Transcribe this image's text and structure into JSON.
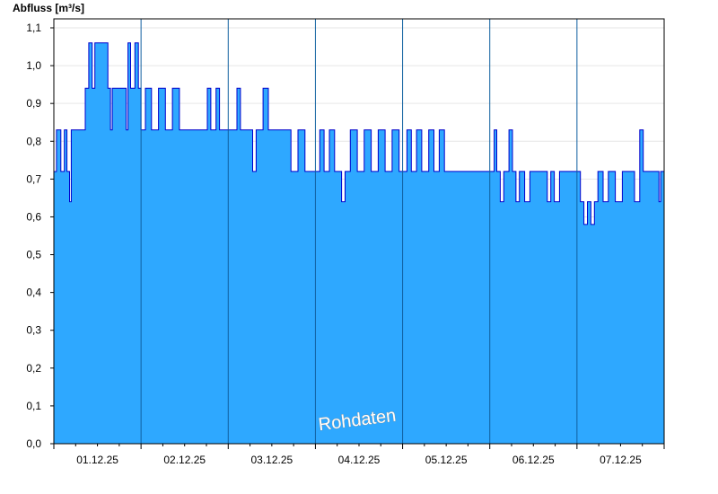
{
  "chart_data": {
    "type": "area",
    "ylabel": "Abfluss [m³/s]",
    "watermark": "Rohdaten",
    "ylim": [
      0,
      1.1
    ],
    "y_ticks": [
      "0,0",
      "0,1",
      "0,2",
      "0,3",
      "0,4",
      "0,5",
      "0,6",
      "0,7",
      "0,8",
      "0,9",
      "1,0",
      "1,1"
    ],
    "x_ticks": [
      "01.12.25",
      "02.12.25",
      "03.12.25",
      "04.12.25",
      "05.12.25",
      "06.12.25",
      "07.12.25"
    ],
    "x_range_days": [
      0,
      7
    ],
    "day_boundaries": [
      1,
      2,
      3,
      4,
      5,
      6
    ],
    "grid": true,
    "colors": {
      "fill": "#2ea8ff",
      "line": "#0000cc",
      "grid": "#e6e6e6"
    },
    "series": [
      {
        "values": [
          [
            0.0,
            0.72
          ],
          [
            0.03,
            0.83
          ],
          [
            0.08,
            0.72
          ],
          [
            0.12,
            0.83
          ],
          [
            0.15,
            0.72
          ],
          [
            0.18,
            0.64
          ],
          [
            0.2,
            0.83
          ],
          [
            0.24,
            0.83
          ],
          [
            0.33,
            0.83
          ],
          [
            0.36,
            0.94
          ],
          [
            0.4,
            1.06
          ],
          [
            0.44,
            0.94
          ],
          [
            0.47,
            1.06
          ],
          [
            0.56,
            1.06
          ],
          [
            0.62,
            0.94
          ],
          [
            0.65,
            0.83
          ],
          [
            0.67,
            0.94
          ],
          [
            0.79,
            0.94
          ],
          [
            0.83,
            0.83
          ],
          [
            0.85,
            1.06
          ],
          [
            0.88,
            0.94
          ],
          [
            0.93,
            1.06
          ],
          [
            0.97,
            0.94
          ],
          [
            1.0,
            0.83
          ],
          [
            1.05,
            0.94
          ],
          [
            1.12,
            0.83
          ],
          [
            1.2,
            0.94
          ],
          [
            1.28,
            0.83
          ],
          [
            1.36,
            0.94
          ],
          [
            1.44,
            0.83
          ],
          [
            1.52,
            0.83
          ],
          [
            1.72,
            0.83
          ],
          [
            1.76,
            0.94
          ],
          [
            1.8,
            0.83
          ],
          [
            1.86,
            0.94
          ],
          [
            1.9,
            0.83
          ],
          [
            1.98,
            0.83
          ],
          [
            2.05,
            0.83
          ],
          [
            2.1,
            0.94
          ],
          [
            2.14,
            0.83
          ],
          [
            2.2,
            0.83
          ],
          [
            2.28,
            0.72
          ],
          [
            2.32,
            0.83
          ],
          [
            2.4,
            0.94
          ],
          [
            2.46,
            0.83
          ],
          [
            2.7,
            0.83
          ],
          [
            2.72,
            0.72
          ],
          [
            2.8,
            0.83
          ],
          [
            2.88,
            0.72
          ],
          [
            3.0,
            0.72
          ],
          [
            3.05,
            0.83
          ],
          [
            3.1,
            0.72
          ],
          [
            3.16,
            0.83
          ],
          [
            3.22,
            0.72
          ],
          [
            3.3,
            0.64
          ],
          [
            3.34,
            0.72
          ],
          [
            3.4,
            0.83
          ],
          [
            3.48,
            0.72
          ],
          [
            3.56,
            0.83
          ],
          [
            3.64,
            0.72
          ],
          [
            3.72,
            0.83
          ],
          [
            3.8,
            0.72
          ],
          [
            3.88,
            0.83
          ],
          [
            3.96,
            0.72
          ],
          [
            4.05,
            0.83
          ],
          [
            4.1,
            0.72
          ],
          [
            4.16,
            0.83
          ],
          [
            4.22,
            0.72
          ],
          [
            4.3,
            0.83
          ],
          [
            4.36,
            0.72
          ],
          [
            4.42,
            0.83
          ],
          [
            4.48,
            0.72
          ],
          [
            5.0,
            0.72
          ],
          [
            5.05,
            0.83
          ],
          [
            5.08,
            0.72
          ],
          [
            5.12,
            0.64
          ],
          [
            5.16,
            0.72
          ],
          [
            5.22,
            0.83
          ],
          [
            5.26,
            0.72
          ],
          [
            5.3,
            0.64
          ],
          [
            5.34,
            0.72
          ],
          [
            5.4,
            0.64
          ],
          [
            5.46,
            0.72
          ],
          [
            5.6,
            0.72
          ],
          [
            5.66,
            0.64
          ],
          [
            5.7,
            0.72
          ],
          [
            5.74,
            0.64
          ],
          [
            5.8,
            0.72
          ],
          [
            6.0,
            0.72
          ],
          [
            6.04,
            0.64
          ],
          [
            6.08,
            0.58
          ],
          [
            6.12,
            0.64
          ],
          [
            6.16,
            0.58
          ],
          [
            6.2,
            0.64
          ],
          [
            6.24,
            0.72
          ],
          [
            6.3,
            0.64
          ],
          [
            6.36,
            0.72
          ],
          [
            6.44,
            0.64
          ],
          [
            6.52,
            0.72
          ],
          [
            6.6,
            0.72
          ],
          [
            6.66,
            0.64
          ],
          [
            6.72,
            0.83
          ],
          [
            6.76,
            0.72
          ],
          [
            6.9,
            0.72
          ],
          [
            6.94,
            0.64
          ],
          [
            6.96,
            0.72
          ],
          [
            7.0,
            0.72
          ]
        ]
      }
    ]
  }
}
